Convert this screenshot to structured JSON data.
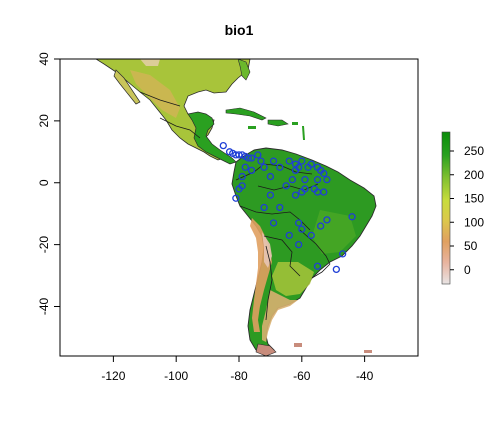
{
  "chart_data": {
    "type": "heatmap",
    "title": "bio1",
    "xlabel": "",
    "ylabel": "",
    "xlim": [
      -137,
      -23
    ],
    "ylim": [
      -56,
      40
    ],
    "x_ticks": [
      -120,
      -100,
      -80,
      -60,
      -40
    ],
    "x_tick_labels": [
      "-120",
      "-100",
      "-80",
      "-60",
      "-40"
    ],
    "y_ticks": [
      -40,
      -20,
      0,
      20,
      40
    ],
    "y_tick_labels": [
      "-40",
      "-20",
      "0",
      "20",
      "40"
    ],
    "legend": {
      "placement": "right",
      "range": [
        -30,
        290
      ],
      "ticks": [
        0,
        50,
        100,
        150,
        200,
        250
      ],
      "tick_labels": [
        "0",
        "50",
        "100",
        "150",
        "200",
        "250"
      ],
      "colors": [
        "#e8e4e4",
        "#e8b4a0",
        "#e0a060",
        "#dcc84c",
        "#c8dc3c",
        "#80c030",
        "#28a020",
        "#0a8c0a"
      ]
    },
    "occurrence_points": {
      "color": "#1f3fd6",
      "points": [
        [
          -85,
          12
        ],
        [
          -83,
          10
        ],
        [
          -82,
          9.5
        ],
        [
          -81,
          9
        ],
        [
          -80,
          9
        ],
        [
          -79,
          9
        ],
        [
          -78,
          8.5
        ],
        [
          -77,
          8
        ],
        [
          -76,
          8
        ],
        [
          -79,
          2
        ],
        [
          -79,
          -1
        ],
        [
          -80,
          -2
        ],
        [
          -81,
          -5
        ],
        [
          -78,
          5
        ],
        [
          -76,
          4
        ],
        [
          -74,
          9
        ],
        [
          -73,
          7
        ],
        [
          -72,
          5
        ],
        [
          -70,
          2
        ],
        [
          -69,
          7
        ],
        [
          -67,
          5
        ],
        [
          -64,
          7
        ],
        [
          -62,
          6
        ],
        [
          -61,
          5
        ],
        [
          -60,
          7
        ],
        [
          -58,
          5
        ],
        [
          -57,
          6
        ],
        [
          -55,
          5
        ],
        [
          -54,
          4
        ],
        [
          -53,
          3
        ],
        [
          -62,
          4
        ],
        [
          -59,
          1
        ],
        [
          -55,
          1
        ],
        [
          -52,
          1
        ],
        [
          -63,
          1
        ],
        [
          -65,
          -1
        ],
        [
          -60,
          -3
        ],
        [
          -59,
          -2
        ],
        [
          -56,
          -2
        ],
        [
          -55,
          -3
        ],
        [
          -53,
          -3
        ],
        [
          -62,
          -4
        ],
        [
          -70,
          -4
        ],
        [
          -72,
          -8
        ],
        [
          -67,
          -8
        ],
        [
          -61,
          -13
        ],
        [
          -60,
          -15
        ],
        [
          -57,
          -17
        ],
        [
          -52,
          -12
        ],
        [
          -44,
          -11
        ],
        [
          -54,
          -14
        ],
        [
          -64,
          -17
        ],
        [
          -69,
          -13
        ],
        [
          -61,
          -20
        ],
        [
          -47,
          -23
        ],
        [
          -49,
          -28
        ],
        [
          -55,
          -27
        ]
      ]
    }
  }
}
